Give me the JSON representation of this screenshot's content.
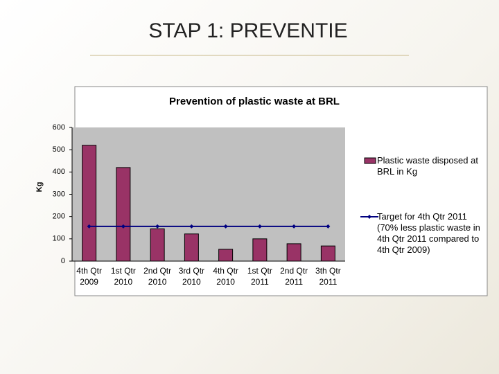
{
  "slide_title": "STAP 1: PREVENTIE",
  "chart_data": {
    "type": "bar",
    "title": "Prevention of plastic waste at BRL",
    "y_label": "Kg",
    "categories": [
      "4th Qtr 2009",
      "1st Qtr 2010",
      "2nd Qtr 2010",
      "3rd Qtr 2010",
      "4th Qtr 2010",
      "1st Qtr 2011",
      "2nd Qtr 2011",
      "3th Qtr 2011"
    ],
    "series": [
      {
        "name": "Plastic waste disposed at BRL in Kg",
        "type": "bar",
        "color": "#993366",
        "values": [
          520,
          420,
          145,
          122,
          53,
          100,
          78,
          68
        ]
      },
      {
        "name": "Target for 4th Qtr 2011 (70% less plastic waste in 4th Qtr 2011 compared to 4th Qtr 2009)",
        "type": "line",
        "color": "#000080",
        "values": [
          156,
          156,
          156,
          156,
          156,
          156,
          156,
          156
        ]
      }
    ],
    "ylim": [
      0,
      600
    ],
    "yticks": [
      0,
      100,
      200,
      300,
      400,
      500,
      600
    ],
    "plot_background": "#c0c0c0",
    "legend": "right"
  }
}
